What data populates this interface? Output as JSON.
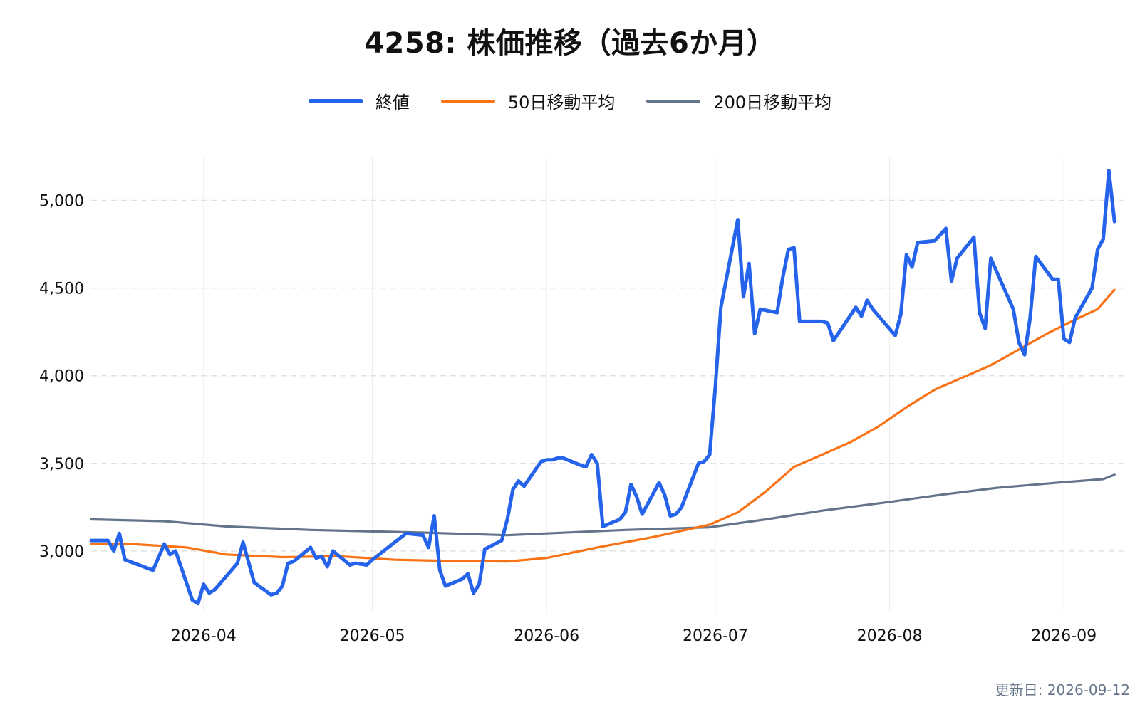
{
  "chart_data": {
    "type": "line",
    "title": "4258: 株価推移（過去6か月）",
    "xlabel": "",
    "ylabel": "",
    "x_range": [
      "2026-03-12",
      "2026-09-12"
    ],
    "ylim": [
      2650,
      5250
    ],
    "y_ticks": [
      3000,
      3500,
      4000,
      4500,
      5000
    ],
    "y_tick_labels": [
      "3,000",
      "3,500",
      "4,000",
      "4,500",
      "5,000"
    ],
    "x_ticks": [
      "2026-04-01",
      "2026-05-01",
      "2026-06-01",
      "2026-07-01",
      "2026-08-01",
      "2026-09-01"
    ],
    "x_tick_labels": [
      "2026-04",
      "2026-05",
      "2026-06",
      "2026-07",
      "2026-08",
      "2026-09"
    ],
    "grid": true,
    "legend_position": "top-center",
    "series": [
      {
        "name": "終値",
        "color": "#2563eb",
        "points": [
          [
            "2026-03-12",
            3060
          ],
          [
            "2026-03-15",
            3060
          ],
          [
            "2026-03-16",
            3000
          ],
          [
            "2026-03-17",
            3100
          ],
          [
            "2026-03-18",
            2950
          ],
          [
            "2026-03-23",
            2890
          ],
          [
            "2026-03-25",
            3040
          ],
          [
            "2026-03-26",
            2980
          ],
          [
            "2026-03-27",
            3000
          ],
          [
            "2026-03-30",
            2720
          ],
          [
            "2026-03-31",
            2700
          ],
          [
            "2026-04-01",
            2810
          ],
          [
            "2026-04-02",
            2760
          ],
          [
            "2026-04-03",
            2780
          ],
          [
            "2026-04-07",
            2930
          ],
          [
            "2026-04-08",
            3050
          ],
          [
            "2026-04-10",
            2820
          ],
          [
            "2026-04-13",
            2750
          ],
          [
            "2026-04-14",
            2760
          ],
          [
            "2026-04-15",
            2800
          ],
          [
            "2026-04-16",
            2930
          ],
          [
            "2026-04-17",
            2940
          ],
          [
            "2026-04-20",
            3020
          ],
          [
            "2026-04-21",
            2960
          ],
          [
            "2026-04-22",
            2970
          ],
          [
            "2026-04-23",
            2910
          ],
          [
            "2026-04-24",
            3000
          ],
          [
            "2026-04-27",
            2920
          ],
          [
            "2026-04-28",
            2930
          ],
          [
            "2026-04-30",
            2920
          ],
          [
            "2026-05-01",
            2950
          ],
          [
            "2026-05-07",
            3100
          ],
          [
            "2026-05-10",
            3090
          ],
          [
            "2026-05-11",
            3020
          ],
          [
            "2026-05-12",
            3200
          ],
          [
            "2026-05-13",
            2890
          ],
          [
            "2026-05-14",
            2800
          ],
          [
            "2026-05-17",
            2840
          ],
          [
            "2026-05-18",
            2870
          ],
          [
            "2026-05-19",
            2760
          ],
          [
            "2026-05-20",
            2810
          ],
          [
            "2026-05-21",
            3010
          ],
          [
            "2026-05-24",
            3060
          ],
          [
            "2026-05-25",
            3180
          ],
          [
            "2026-05-26",
            3350
          ],
          [
            "2026-05-27",
            3400
          ],
          [
            "2026-05-28",
            3370
          ],
          [
            "2026-05-31",
            3510
          ],
          [
            "2026-06-01",
            3520
          ],
          [
            "2026-06-02",
            3520
          ],
          [
            "2026-06-03",
            3530
          ],
          [
            "2026-06-04",
            3530
          ],
          [
            "2026-06-07",
            3490
          ],
          [
            "2026-06-08",
            3480
          ],
          [
            "2026-06-09",
            3550
          ],
          [
            "2026-06-10",
            3500
          ],
          [
            "2026-06-11",
            3140
          ],
          [
            "2026-06-14",
            3180
          ],
          [
            "2026-06-15",
            3220
          ],
          [
            "2026-06-16",
            3380
          ],
          [
            "2026-06-17",
            3310
          ],
          [
            "2026-06-18",
            3210
          ],
          [
            "2026-06-21",
            3390
          ],
          [
            "2026-06-22",
            3320
          ],
          [
            "2026-06-23",
            3200
          ],
          [
            "2026-06-24",
            3210
          ],
          [
            "2026-06-25",
            3250
          ],
          [
            "2026-06-28",
            3500
          ],
          [
            "2026-06-29",
            3510
          ],
          [
            "2026-06-30",
            3550
          ],
          [
            "2026-07-01",
            3930
          ],
          [
            "2026-07-02",
            4390
          ],
          [
            "2026-07-05",
            4890
          ],
          [
            "2026-07-06",
            4450
          ],
          [
            "2026-07-07",
            4640
          ],
          [
            "2026-07-08",
            4240
          ],
          [
            "2026-07-09",
            4380
          ],
          [
            "2026-07-12",
            4360
          ],
          [
            "2026-07-13",
            4560
          ],
          [
            "2026-07-14",
            4720
          ],
          [
            "2026-07-15",
            4730
          ],
          [
            "2026-07-16",
            4310
          ],
          [
            "2026-07-20",
            4310
          ],
          [
            "2026-07-21",
            4300
          ],
          [
            "2026-07-22",
            4200
          ],
          [
            "2026-07-26",
            4390
          ],
          [
            "2026-07-27",
            4340
          ],
          [
            "2026-07-28",
            4430
          ],
          [
            "2026-07-29",
            4380
          ],
          [
            "2026-08-02",
            4230
          ],
          [
            "2026-08-03",
            4350
          ],
          [
            "2026-08-04",
            4690
          ],
          [
            "2026-08-05",
            4620
          ],
          [
            "2026-08-06",
            4760
          ],
          [
            "2026-08-09",
            4770
          ],
          [
            "2026-08-11",
            4840
          ],
          [
            "2026-08-12",
            4540
          ],
          [
            "2026-08-13",
            4670
          ],
          [
            "2026-08-16",
            4790
          ],
          [
            "2026-08-17",
            4360
          ],
          [
            "2026-08-18",
            4270
          ],
          [
            "2026-08-19",
            4670
          ],
          [
            "2026-08-23",
            4380
          ],
          [
            "2026-08-24",
            4190
          ],
          [
            "2026-08-25",
            4120
          ],
          [
            "2026-08-26",
            4330
          ],
          [
            "2026-08-27",
            4680
          ],
          [
            "2026-08-30",
            4550
          ],
          [
            "2026-08-31",
            4550
          ],
          [
            "2026-09-01",
            4210
          ],
          [
            "2026-09-02",
            4190
          ],
          [
            "2026-09-03",
            4330
          ],
          [
            "2026-09-06",
            4500
          ],
          [
            "2026-09-07",
            4720
          ],
          [
            "2026-09-08",
            4780
          ],
          [
            "2026-09-09",
            5170
          ],
          [
            "2026-09-10",
            4880
          ]
        ]
      },
      {
        "name": "50日移動平均",
        "color": "#f97316",
        "points": [
          [
            "2026-03-12",
            3040
          ],
          [
            "2026-03-19",
            3040
          ],
          [
            "2026-03-29",
            3020
          ],
          [
            "2026-04-05",
            2980
          ],
          [
            "2026-04-15",
            2965
          ],
          [
            "2026-04-25",
            2970
          ],
          [
            "2026-05-05",
            2950
          ],
          [
            "2026-05-12",
            2945
          ],
          [
            "2026-05-25",
            2940
          ],
          [
            "2026-06-01",
            2960
          ],
          [
            "2026-06-10",
            3020
          ],
          [
            "2026-06-20",
            3080
          ],
          [
            "2026-06-30",
            3150
          ],
          [
            "2026-07-05",
            3220
          ],
          [
            "2026-07-10",
            3340
          ],
          [
            "2026-07-15",
            3480
          ],
          [
            "2026-07-20",
            3550
          ],
          [
            "2026-07-25",
            3620
          ],
          [
            "2026-07-30",
            3710
          ],
          [
            "2026-08-04",
            3820
          ],
          [
            "2026-08-09",
            3920
          ],
          [
            "2026-08-14",
            3990
          ],
          [
            "2026-08-19",
            4060
          ],
          [
            "2026-08-24",
            4150
          ],
          [
            "2026-08-29",
            4240
          ],
          [
            "2026-09-03",
            4320
          ],
          [
            "2026-09-07",
            4380
          ],
          [
            "2026-09-10",
            4490
          ]
        ]
      },
      {
        "name": "200日移動平均",
        "color": "#64748b",
        "points": [
          [
            "2026-03-12",
            3180
          ],
          [
            "2026-03-25",
            3170
          ],
          [
            "2026-04-05",
            3140
          ],
          [
            "2026-04-20",
            3120
          ],
          [
            "2026-05-10",
            3105
          ],
          [
            "2026-05-25",
            3090
          ],
          [
            "2026-06-01",
            3100
          ],
          [
            "2026-06-15",
            3120
          ],
          [
            "2026-06-30",
            3135
          ],
          [
            "2026-07-10",
            3180
          ],
          [
            "2026-07-20",
            3230
          ],
          [
            "2026-08-01",
            3280
          ],
          [
            "2026-08-10",
            3320
          ],
          [
            "2026-08-20",
            3360
          ],
          [
            "2026-08-31",
            3390
          ],
          [
            "2026-09-08",
            3410
          ],
          [
            "2026-09-10",
            3435
          ]
        ]
      }
    ]
  },
  "updated_label": "更新日: 2026-09-12"
}
